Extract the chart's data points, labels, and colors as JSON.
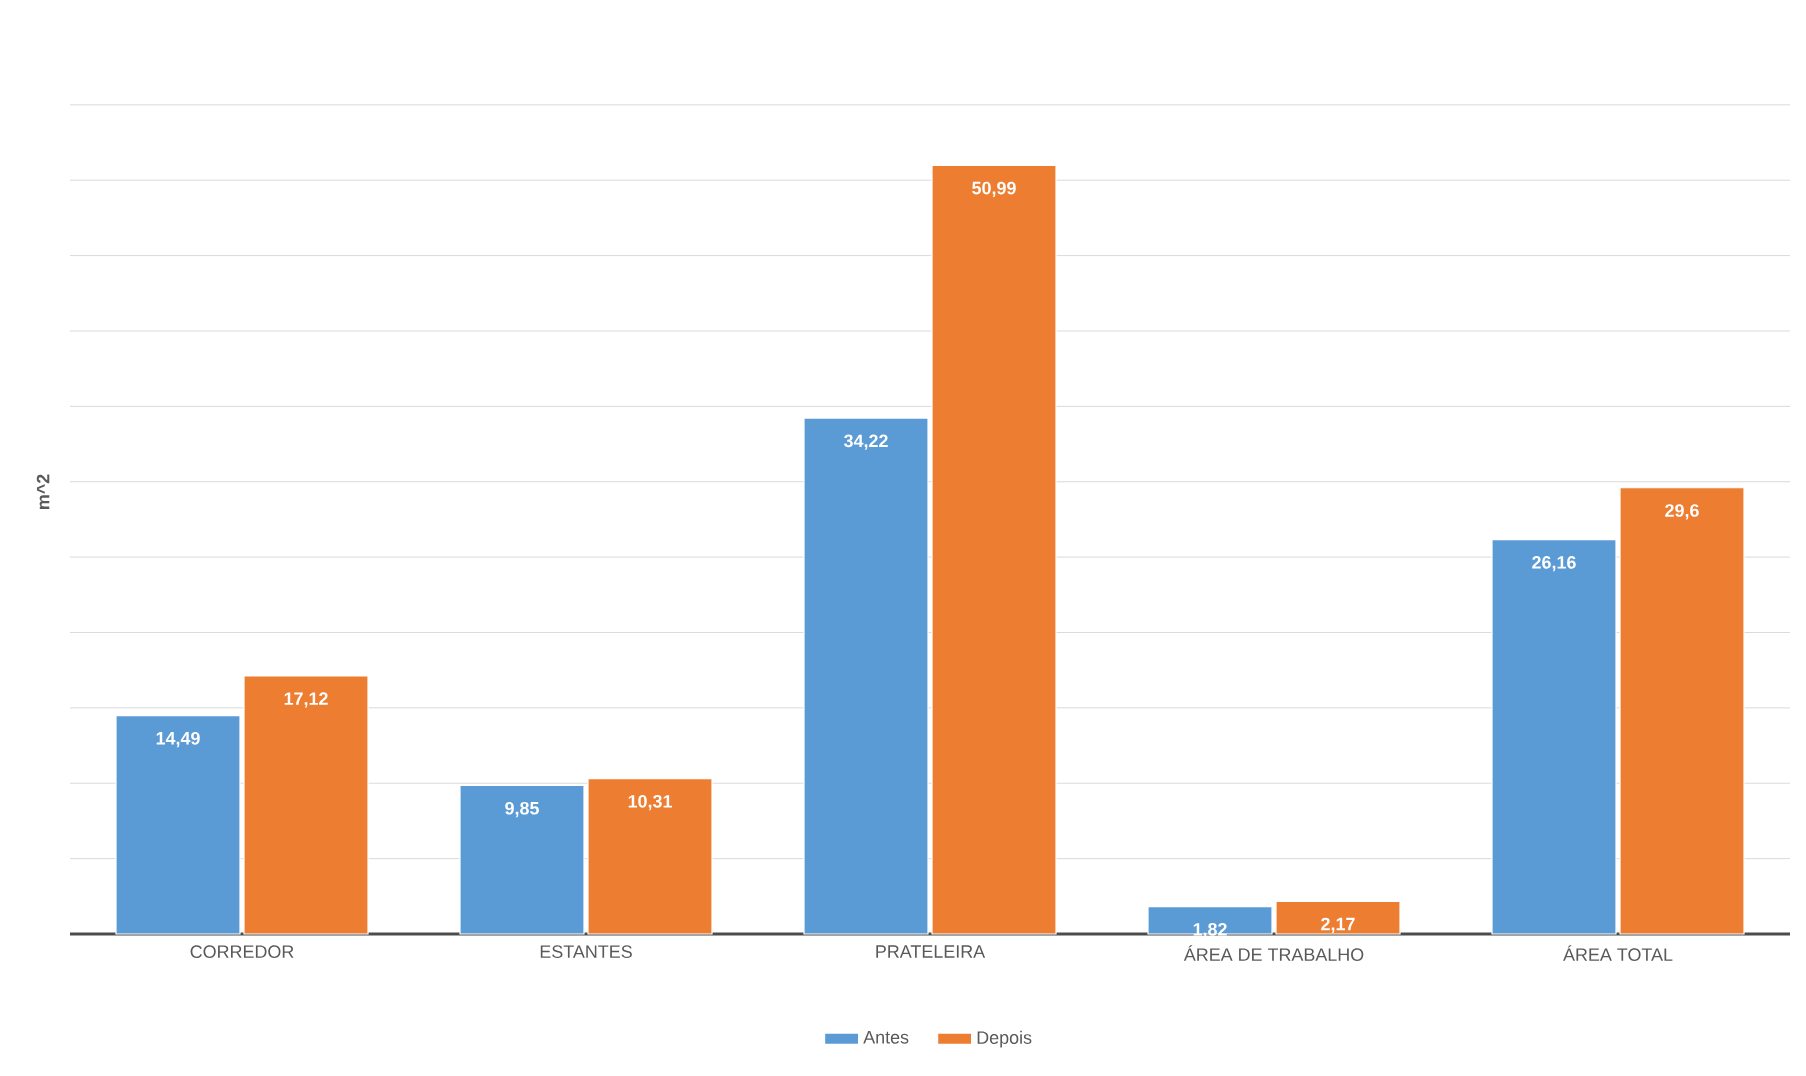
{
  "chart_data": {
    "type": "bar",
    "ylabel": "m^2",
    "categories": [
      "CORREDOR",
      "ESTANTES",
      "PRATELEIRA",
      "ÁREA DE TRABALHO",
      "ÁREA TOTAL"
    ],
    "series": [
      {
        "name": "Antes",
        "color": "#5b9bd5",
        "values": [
          14.49,
          9.85,
          34.22,
          1.82,
          26.16
        ],
        "value_labels": [
          "14,49",
          "9,85",
          "34,22",
          "1,82",
          "26,16"
        ]
      },
      {
        "name": "Depois",
        "color": "#ed7d31",
        "values": [
          17.12,
          10.31,
          50.99,
          2.17,
          29.6
        ],
        "value_labels": [
          "17,12",
          "10,31",
          "50,99",
          "2,17",
          "29,6"
        ]
      }
    ],
    "grid": "y",
    "legend": "bottom",
    "tick_labels": "x"
  }
}
